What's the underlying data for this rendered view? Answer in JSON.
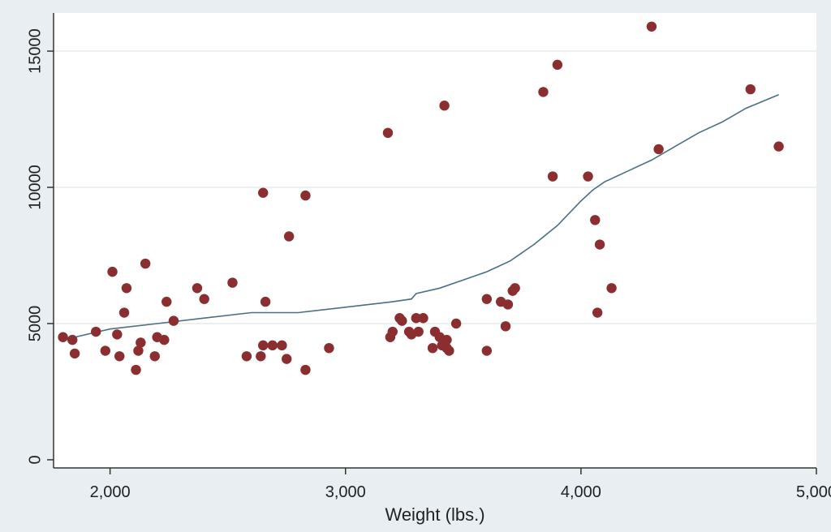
{
  "chart_data": {
    "type": "scatter",
    "title": "",
    "xlabel": "Weight (lbs.)",
    "ylabel": "",
    "xlim": [
      1760,
      5000
    ],
    "ylim": [
      -300,
      16400
    ],
    "grid": true,
    "legend": "none",
    "x_ticks": [
      {
        "value": 2000,
        "label": "2,000"
      },
      {
        "value": 3000,
        "label": "3,000"
      },
      {
        "value": 4000,
        "label": "4,000"
      },
      {
        "value": 5000,
        "label": "5,000"
      }
    ],
    "y_ticks": [
      {
        "value": 0,
        "label": "0"
      },
      {
        "value": 5000,
        "label": "5000"
      },
      {
        "value": 10000,
        "label": "10000"
      },
      {
        "value": 15000,
        "label": "15000"
      }
    ],
    "colors": {
      "points": "#8b2e30",
      "line": "#4a6f82",
      "grid": "#e6eaec",
      "plot_bg": "#ffffff",
      "page_bg": "#e8eef1"
    },
    "series": [
      {
        "kind": "points",
        "x": [
          1800,
          1840,
          1850,
          1940,
          1980,
          2010,
          2030,
          2040,
          2060,
          2070,
          2110,
          2120,
          2130,
          2150,
          2190,
          2200,
          2230,
          2240,
          2270,
          2370,
          2400,
          2520,
          2580,
          2640,
          2650,
          2650,
          2660,
          2690,
          2730,
          2750,
          2760,
          2830,
          2830,
          2930,
          3180,
          3190,
          3200,
          3230,
          3240,
          3270,
          3280,
          3300,
          3310,
          3330,
          3370,
          3380,
          3400,
          3410,
          3420,
          3430,
          3430,
          3440,
          3470,
          3600,
          3600,
          3660,
          3680,
          3690,
          3710,
          3720,
          3840,
          3880,
          3900,
          4030,
          4060,
          4070,
          4080,
          4130,
          4300,
          4330,
          4720,
          4840
        ],
        "y": [
          4500,
          4400,
          3900,
          4700,
          4000,
          6900,
          4600,
          3800,
          5400,
          6300,
          3300,
          4000,
          4300,
          7200,
          3800,
          4500,
          4400,
          5800,
          5100,
          6300,
          5900,
          6500,
          3800,
          3800,
          9800,
          4200,
          5800,
          4200,
          4200,
          3700,
          8200,
          3300,
          9700,
          4100,
          12000,
          4500,
          4700,
          5200,
          5100,
          4700,
          4600,
          5200,
          4700,
          5200,
          4100,
          4700,
          4500,
          4200,
          13000,
          4400,
          4100,
          4000,
          5000,
          5900,
          4000,
          5800,
          4900,
          5700,
          6200,
          6300,
          13500,
          10400,
          14500,
          10400,
          8800,
          5400,
          7900,
          6300,
          15900,
          11400,
          13600,
          11500
        ]
      },
      {
        "kind": "line",
        "x": [
          1800,
          2000,
          2200,
          2400,
          2600,
          2800,
          3000,
          3200,
          3280,
          3300,
          3400,
          3500,
          3600,
          3700,
          3800,
          3900,
          4000,
          4050,
          4100,
          4200,
          4300,
          4400,
          4500,
          4600,
          4700,
          4840
        ],
        "y": [
          4400,
          4800,
          5000,
          5200,
          5400,
          5400,
          5600,
          5800,
          5900,
          6100,
          6300,
          6600,
          6900,
          7300,
          7900,
          8600,
          9500,
          9900,
          10200,
          10600,
          11000,
          11500,
          12000,
          12400,
          12900,
          13400
        ]
      }
    ]
  }
}
